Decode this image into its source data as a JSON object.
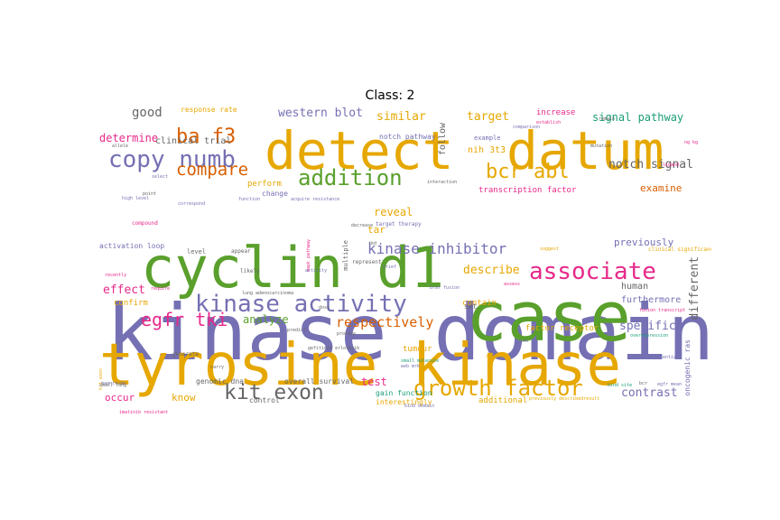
{
  "chart_data": {
    "type": "wordcloud",
    "title": "Class: 2",
    "colors": {
      "orange": "#e6a700",
      "purple": "#7570b3",
      "green": "#5aa02c",
      "magenta": "#e7298a",
      "dark_orange": "#d95f02",
      "teal": "#1b9e77",
      "gray": "#666666"
    },
    "words": [
      {
        "text": "kinase domain",
        "color": "purple",
        "rank": 1
      },
      {
        "text": "tyrosine kinase",
        "color": "orange",
        "rank": 2
      },
      {
        "text": "case",
        "color": "green",
        "rank": 3
      },
      {
        "text": "cyclin d1",
        "color": "green",
        "rank": 4
      },
      {
        "text": "detect",
        "color": "orange",
        "rank": 5
      },
      {
        "text": "datum",
        "color": "orange",
        "rank": 6
      },
      {
        "text": "kinase activity",
        "color": "purple",
        "rank": 7
      },
      {
        "text": "associate",
        "color": "magenta",
        "rank": 8
      },
      {
        "text": "copy numb",
        "color": "purple",
        "rank": 9
      },
      {
        "text": "growth factor",
        "color": "orange",
        "rank": 10
      },
      {
        "text": "kit exon",
        "color": "gray",
        "rank": 11
      },
      {
        "text": "addition",
        "color": "green",
        "rank": 12
      },
      {
        "text": "bcr abl",
        "color": "orange",
        "rank": 13
      },
      {
        "text": "ba f3",
        "color": "dark_orange",
        "rank": 14
      },
      {
        "text": "egfr tki",
        "color": "magenta",
        "rank": 15
      },
      {
        "text": "compare",
        "color": "dark_orange",
        "rank": 16
      },
      {
        "text": "kinase inhibitor",
        "color": "purple",
        "rank": 17
      },
      {
        "text": "respectively",
        "color": "dark_orange",
        "rank": 18
      },
      {
        "text": "notch signal",
        "color": "gray",
        "rank": 19
      },
      {
        "text": "western blot",
        "color": "purple",
        "rank": 20
      },
      {
        "text": "signal pathway",
        "color": "teal",
        "rank": 21
      },
      {
        "text": "similar",
        "color": "orange",
        "rank": 22
      },
      {
        "text": "target",
        "color": "orange",
        "rank": 23
      },
      {
        "text": "good",
        "color": "gray",
        "rank": 24
      },
      {
        "text": "contrast",
        "color": "purple",
        "rank": 25
      },
      {
        "text": "specific",
        "color": "purple",
        "rank": 26
      },
      {
        "text": "different",
        "color": "gray",
        "rank": 27
      },
      {
        "text": "describe",
        "color": "orange",
        "rank": 28
      },
      {
        "text": "effect",
        "color": "magenta",
        "rank": 29
      },
      {
        "text": "analyze",
        "color": "green",
        "rank": 30
      },
      {
        "text": "determine",
        "color": "magenta",
        "rank": 31
      },
      {
        "text": "reveal",
        "color": "orange",
        "rank": 32
      },
      {
        "text": "examine",
        "color": "dark_orange",
        "rank": 33
      },
      {
        "text": "previously",
        "color": "purple",
        "rank": 34
      },
      {
        "text": "test",
        "color": "magenta",
        "rank": 35
      },
      {
        "text": "tar",
        "color": "orange",
        "rank": 36
      },
      {
        "text": "human",
        "color": "gray",
        "rank": 37
      },
      {
        "text": "furthermore",
        "color": "purple",
        "rank": 38
      },
      {
        "text": "know",
        "color": "orange",
        "rank": 39
      },
      {
        "text": "occur",
        "color": "magenta",
        "rank": 40
      },
      {
        "text": "tumour",
        "color": "orange",
        "rank": 41
      },
      {
        "text": "additional",
        "color": "orange",
        "rank": 42
      },
      {
        "text": "clinical trial",
        "color": "gray",
        "rank": 43
      },
      {
        "text": "transcription factor",
        "color": "magenta",
        "rank": 44
      },
      {
        "text": "nih 3t3",
        "color": "orange",
        "rank": 45
      },
      {
        "text": "follow",
        "color": "gray",
        "rank": 46
      },
      {
        "text": "increase",
        "color": "magenta",
        "rank": 47
      },
      {
        "text": "confirm",
        "color": "orange",
        "rank": 48
      },
      {
        "text": "factor receptor",
        "color": "orange",
        "rank": 49
      },
      {
        "text": "contain",
        "color": "orange",
        "rank": 50
      },
      {
        "text": "response rate",
        "color": "orange",
        "rank": 51
      },
      {
        "text": "notch pathway",
        "color": "purple",
        "rank": 52
      },
      {
        "text": "activation loop",
        "color": "purple",
        "rank": 53
      },
      {
        "text": "perform",
        "color": "orange",
        "rank": 54
      },
      {
        "text": "change",
        "color": "purple",
        "rank": 55
      },
      {
        "text": "genomic dna",
        "color": "gray",
        "rank": 56
      },
      {
        "text": "overall survival",
        "color": "gray",
        "rank": 57
      },
      {
        "text": "gain function",
        "color": "teal",
        "rank": 58
      },
      {
        "text": "interestingly",
        "color": "orange",
        "rank": 59
      },
      {
        "text": "control",
        "color": "gray",
        "rank": 60
      },
      {
        "text": "oncogenic ras",
        "color": "purple",
        "rank": 61
      },
      {
        "text": "example",
        "color": "purple",
        "rank": 62
      },
      {
        "text": "target therapy",
        "color": "purple",
        "rank": 63
      },
      {
        "text": "multiple",
        "color": "gray",
        "rank": 64
      },
      {
        "text": "set",
        "color": "gray",
        "rank": 65
      },
      {
        "text": "level",
        "color": "gray",
        "rank": 66
      },
      {
        "text": "appear",
        "color": "gray",
        "rank": 67
      },
      {
        "text": "generate",
        "color": "gray",
        "rank": 68
      },
      {
        "text": "represent",
        "color": "gray",
        "rank": 69
      },
      {
        "text": "likely",
        "color": "gray",
        "rank": 70
      },
      {
        "text": "function",
        "color": "purple",
        "rank": 71
      },
      {
        "text": "establish",
        "color": "magenta",
        "rank": 72
      },
      {
        "text": "compound",
        "color": "magenta",
        "rank": 73
      },
      {
        "text": "correspond",
        "color": "purple",
        "rank": 74
      },
      {
        "text": "select",
        "color": "purple",
        "rank": 75
      },
      {
        "text": "high level",
        "color": "purple",
        "rank": 76
      },
      {
        "text": "allele",
        "color": "gray",
        "rank": 77
      },
      {
        "text": "acquire resistance",
        "color": "purple",
        "rank": 78
      },
      {
        "text": "require",
        "color": "magenta",
        "rank": 79
      },
      {
        "text": "recently",
        "color": "magenta",
        "rank": 80
      },
      {
        "text": "fusion transcript",
        "color": "magenta",
        "rank": 81
      },
      {
        "text": "ligand",
        "color": "magenta",
        "rank": 82
      },
      {
        "text": "bcr",
        "color": "gray",
        "rank": 83
      },
      {
        "text": "ng kg",
        "color": "magenta",
        "rank": 84
      },
      {
        "text": "point",
        "color": "gray",
        "rank": 85
      },
      {
        "text": "brief",
        "color": "purple",
        "rank": 86
      },
      {
        "text": "bind domain",
        "color": "purple",
        "rank": 87
      },
      {
        "text": "bind site",
        "color": "teal",
        "rank": 88
      },
      {
        "text": "egfr mean",
        "color": "purple",
        "rank": 89
      },
      {
        "text": "small molecule",
        "color": "teal",
        "rank": 90
      },
      {
        "text": "web mrk",
        "color": "purple",
        "rank": 91
      },
      {
        "text": "decrease",
        "color": "gray",
        "rank": 92
      },
      {
        "text": "potential",
        "color": "purple",
        "rank": 93
      },
      {
        "text": "lack",
        "color": "purple",
        "rank": 94
      },
      {
        "text": "cohort",
        "color": "orange",
        "rank": 95
      },
      {
        "text": "comparison",
        "color": "purple",
        "rank": 96
      },
      {
        "text": "mutation",
        "color": "gray",
        "rank": 97
      },
      {
        "text": "remain",
        "color": "gray",
        "rank": 98
      },
      {
        "text": "assess",
        "color": "magenta",
        "rank": 99
      },
      {
        "text": "predict",
        "color": "gray",
        "rank": 100
      },
      {
        "text": "imatinib resistant",
        "color": "magenta",
        "rank": 101
      },
      {
        "text": "dose",
        "color": "gray",
        "rank": 102
      },
      {
        "text": "magnitude",
        "color": "purple",
        "rank": 103
      },
      {
        "text": "previously describedresult",
        "color": "orange",
        "rank": 104
      },
      {
        "text": "gefitinib erlotinib",
        "color": "gray",
        "rank": 105
      },
      {
        "text": "carry",
        "color": "gray",
        "rank": 106
      },
      {
        "text": "clinical significance",
        "color": "orange",
        "rank": 107
      },
      {
        "text": "mapk pathway",
        "color": "magenta",
        "rank": 108
      },
      {
        "text": "lung adenocarcinoma",
        "color": "gray",
        "rank": 109
      },
      {
        "text": "provide",
        "color": "gray",
        "rank": 110
      },
      {
        "text": "overexpression",
        "color": "teal",
        "rank": 111
      },
      {
        "text": "suggest",
        "color": "orange",
        "rank": 112
      },
      {
        "text": "kit exon",
        "color": "orange",
        "rank": 113
      },
      {
        "text": "braf fusion",
        "color": "purple",
        "rank": 114
      },
      {
        "text": "interaction",
        "color": "gray",
        "rank": 115
      },
      {
        "text": "tkd",
        "color": "gray",
        "rank": 116
      },
      {
        "text": "activity",
        "color": "purple",
        "rank": 117
      },
      {
        "text": "small lung",
        "color": "gray",
        "rank": 118
      }
    ]
  }
}
